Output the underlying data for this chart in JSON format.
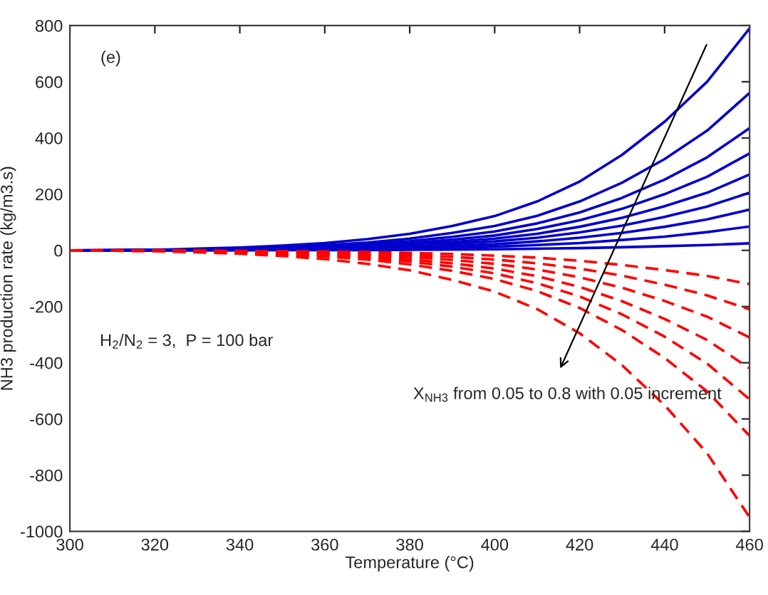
{
  "chart_data": {
    "type": "line",
    "xlabel": "Temperature (°C)",
    "ylabel": "NH3 production rate (kg/m3.s)",
    "x": [
      300,
      310,
      320,
      330,
      340,
      350,
      360,
      370,
      380,
      390,
      400,
      410,
      420,
      430,
      440,
      450,
      460
    ],
    "xlim": [
      300,
      460
    ],
    "xticks": [
      300,
      320,
      340,
      360,
      380,
      400,
      420,
      440,
      460
    ],
    "ylim": [
      -1000,
      800
    ],
    "yticks": [
      -1000,
      -800,
      -600,
      -400,
      -200,
      0,
      200,
      400,
      600,
      800
    ],
    "grid": false,
    "legend": false,
    "marker": "none",
    "annotations": [
      "(e)",
      "H$_{2}$/N$_{2}$ = 3,  P = 100 bar",
      "X$_{NH3}$ from 0.05 to 0.8 with 0.05 increment"
    ],
    "series": [
      {
        "color": "#0000cc",
        "line_style": "solid",
        "values": [
          0,
          1,
          2,
          6,
          10,
          17,
          26,
          40,
          59,
          87,
          122,
          174,
          245,
          340,
          458,
          600,
          790
        ]
      },
      {
        "color": "#0000cc",
        "line_style": "solid",
        "values": [
          0,
          1,
          2,
          4,
          7,
          12,
          18,
          28,
          42,
          62,
          87,
          123,
          174,
          241,
          325,
          426,
          560
        ]
      },
      {
        "color": "#0000cc",
        "line_style": "solid",
        "values": [
          0,
          0,
          1,
          3,
          6,
          9,
          14,
          22,
          33,
          48,
          67,
          96,
          135,
          187,
          252,
          331,
          435
        ]
      },
      {
        "color": "#0000cc",
        "line_style": "solid",
        "values": [
          0,
          0,
          1,
          2,
          4,
          7,
          11,
          17,
          26,
          38,
          53,
          76,
          107,
          148,
          200,
          262,
          345
        ]
      },
      {
        "color": "#0000cc",
        "line_style": "solid",
        "values": [
          0,
          0,
          1,
          2,
          4,
          6,
          9,
          14,
          20,
          30,
          42,
          59,
          84,
          116,
          157,
          205,
          270
        ]
      },
      {
        "color": "#0000cc",
        "line_style": "solid",
        "values": [
          0,
          0,
          1,
          1,
          3,
          4,
          7,
          10,
          15,
          23,
          32,
          45,
          64,
          88,
          119,
          156,
          205
        ]
      },
      {
        "color": "#0000cc",
        "line_style": "solid",
        "values": [
          0,
          0,
          0,
          1,
          2,
          3,
          5,
          7,
          11,
          16,
          22,
          32,
          45,
          62,
          84,
          110,
          145
        ]
      },
      {
        "color": "#0000cc",
        "line_style": "solid",
        "values": [
          0,
          0,
          0,
          1,
          1,
          2,
          3,
          4,
          6,
          9,
          13,
          19,
          26,
          37,
          49,
          65,
          85
        ]
      },
      {
        "color": "#0000cc",
        "line_style": "solid",
        "values": [
          0,
          0,
          0,
          0,
          0,
          1,
          1,
          1,
          2,
          3,
          4,
          6,
          8,
          11,
          15,
          19,
          25
        ]
      },
      {
        "color": "#ff0000",
        "line_style": "dashed",
        "values": [
          0,
          0,
          0,
          -1,
          -2,
          -3,
          -4,
          -6,
          -9,
          -13,
          -19,
          -26,
          -37,
          -52,
          -70,
          -91,
          -120
        ]
      },
      {
        "color": "#ff0000",
        "line_style": "dashed",
        "values": [
          0,
          0,
          -1,
          -1,
          -3,
          -4,
          -7,
          -11,
          -16,
          -23,
          -33,
          -46,
          -65,
          -90,
          -122,
          -160,
          -210
        ]
      },
      {
        "color": "#ff0000",
        "line_style": "dashed",
        "values": [
          0,
          0,
          -1,
          -2,
          -4,
          -7,
          -10,
          -16,
          -23,
          -34,
          -48,
          -68,
          -96,
          -133,
          -180,
          -236,
          -310
        ]
      },
      {
        "color": "#ff0000",
        "line_style": "dashed",
        "values": [
          0,
          0,
          -1,
          -3,
          -5,
          -9,
          -14,
          -21,
          -32,
          -46,
          -65,
          -92,
          -130,
          -181,
          -244,
          -319,
          -420
        ]
      },
      {
        "color": "#ff0000",
        "line_style": "dashed",
        "values": [
          0,
          -1,
          -2,
          -4,
          -7,
          -11,
          -17,
          -27,
          -40,
          -58,
          -82,
          -117,
          -164,
          -228,
          -307,
          -403,
          -530
        ]
      },
      {
        "color": "#ff0000",
        "line_style": "dashed",
        "values": [
          0,
          -1,
          -2,
          -5,
          -9,
          -14,
          -22,
          -33,
          -50,
          -73,
          -102,
          -145,
          -205,
          -284,
          -383,
          -502,
          -660
        ]
      },
      {
        "color": "#ff0000",
        "line_style": "dashed",
        "values": [
          0,
          -1,
          -3,
          -7,
          -12,
          -20,
          -31,
          -48,
          -71,
          -105,
          -147,
          -209,
          -295,
          -409,
          -551,
          -722,
          -950
        ]
      }
    ]
  }
}
